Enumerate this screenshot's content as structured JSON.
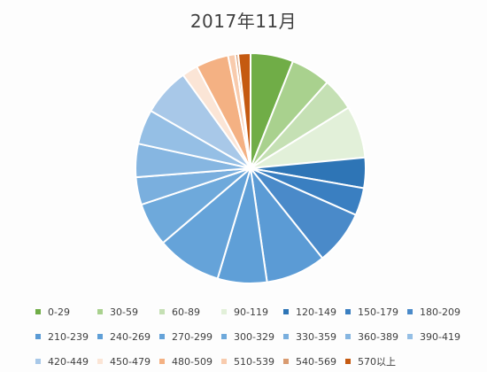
{
  "chart_data": {
    "type": "pie",
    "title": "2017年11月",
    "legend_position": "bottom",
    "categories": [
      "0-29",
      "30-59",
      "60-89",
      "90-119",
      "120-149",
      "150-179",
      "180-209",
      "210-239",
      "240-269",
      "270-299",
      "300-329",
      "330-359",
      "360-389",
      "390-419",
      "420-449",
      "450-479",
      "480-509",
      "510-539",
      "540-569",
      "570以上"
    ],
    "values": [
      5.9,
      5.5,
      4.5,
      7.2,
      4.2,
      3.8,
      7.5,
      8.3,
      6.8,
      9.0,
      6.0,
      3.8,
      4.6,
      4.8,
      6.6,
      2.2,
      4.5,
      1.0,
      0.4,
      1.7
    ],
    "colors": [
      "#70ad47",
      "#a9d18e",
      "#c5e0b4",
      "#e2f0d9",
      "#2e75b6",
      "#3a7fc1",
      "#4a8ac9",
      "#5b9bd5",
      "#5f9fd7",
      "#65a3d9",
      "#6ea9db",
      "#7aafde",
      "#86b6e1",
      "#95bfe5",
      "#a8c8e8",
      "#fbe5d6",
      "#f4b183",
      "#f8cbad",
      "#d99b70",
      "#c55a11"
    ]
  }
}
